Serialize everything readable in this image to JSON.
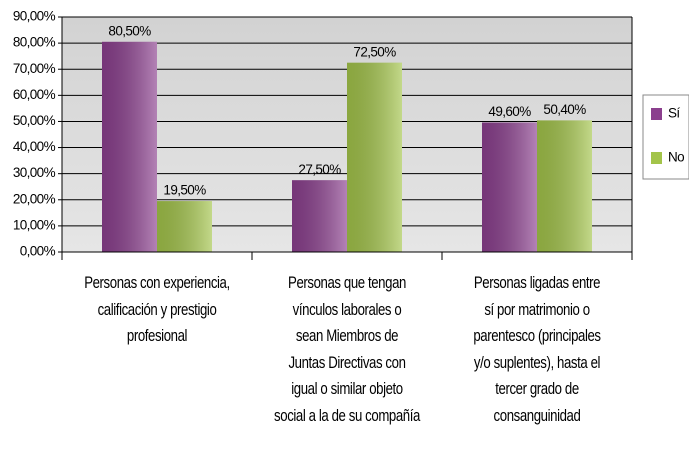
{
  "chart_data": {
    "type": "bar",
    "categories": [
      "Personas con experiencia,\ncalificación y prestigio\nprofesional",
      "Personas que tengan\nvínculos laborales o\nsean Miembros de\nJuntas Directivas con\nigual o similar objeto\nsocial a la de su compañía",
      "Personas ligadas entre\nsí por matrimonio o\nparentesco (principales\ny/o suplentes), hasta el\ntercer grado de\nconsanguinidad"
    ],
    "series": [
      {
        "name": "Sí",
        "color": "#8b3f8e",
        "values": [
          80.5,
          27.5,
          49.6
        ],
        "value_labels": [
          "80,50%",
          "27,50%",
          "49,60%"
        ]
      },
      {
        "name": "No",
        "color": "#a3c44a",
        "values": [
          19.5,
          72.5,
          50.4
        ],
        "value_labels": [
          "19,50%",
          "72,50%",
          "50,40%"
        ]
      }
    ],
    "ylim": [
      0,
      90
    ],
    "yticks": [
      {
        "value": 0,
        "label": "0,00%"
      },
      {
        "value": 10,
        "label": "10,00%"
      },
      {
        "value": 20,
        "label": "20,00%"
      },
      {
        "value": 30,
        "label": "30,00%"
      },
      {
        "value": 40,
        "label": "40,00%"
      },
      {
        "value": 50,
        "label": "50,00%"
      },
      {
        "value": 60,
        "label": "60,00%"
      },
      {
        "value": 70,
        "label": "70,00%"
      },
      {
        "value": 80,
        "label": "80,00%"
      },
      {
        "value": 90,
        "label": "90,00%"
      }
    ],
    "grid": true,
    "legend": "right"
  }
}
